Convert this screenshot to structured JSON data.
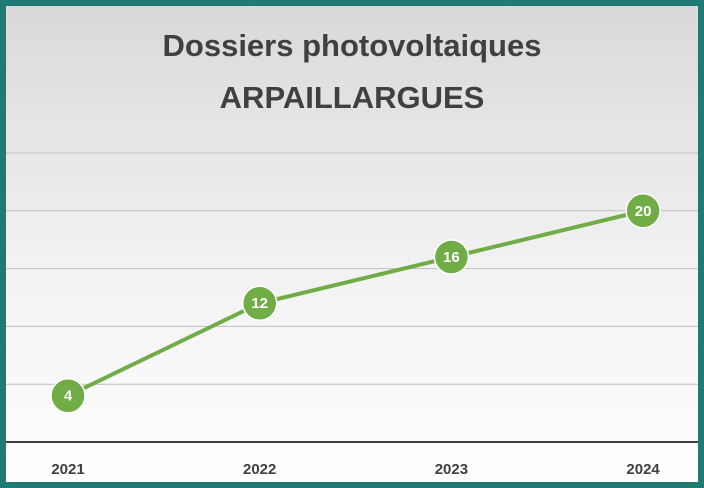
{
  "chart_data": {
    "type": "line",
    "title": "Dossiers photovoltaiques",
    "subtitle": "ARPAILLARGUES",
    "categories": [
      "2021",
      "2022",
      "2023",
      "2024"
    ],
    "series": [
      {
        "name": "Dossiers",
        "color": "#70ad47",
        "values": [
          4,
          12,
          16,
          20
        ]
      }
    ],
    "ylim": [
      0,
      25
    ],
    "yticks": [
      0,
      5,
      10,
      15,
      20,
      25
    ],
    "grid": true
  }
}
